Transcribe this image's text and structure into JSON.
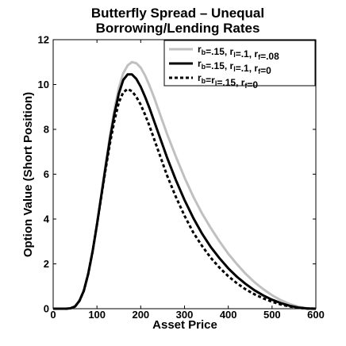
{
  "chart_data": {
    "type": "line",
    "title": [
      "Butterfly Spread – Unequal",
      "Borrowing/Lending Rates"
    ],
    "xlabel": "Asset Price",
    "ylabel": "Option Value (Short Position)",
    "xlim": [
      0,
      600
    ],
    "ylim": [
      0,
      12
    ],
    "xticks": [
      0,
      100,
      200,
      300,
      400,
      500,
      600
    ],
    "yticks": [
      0,
      2,
      4,
      6,
      8,
      10,
      12
    ],
    "grid": false,
    "legend_position": "top-right",
    "series": [
      {
        "name": "r_b=.15, r_l=.1, r_f=.08",
        "legend_parts": [
          [
            "r",
            ""
          ],
          [
            "b",
            "sub"
          ],
          [
            "=.15, r",
            ""
          ],
          [
            "l",
            "sub"
          ],
          [
            "=.1, r",
            ""
          ],
          [
            "f",
            "sub"
          ],
          [
            "=.08",
            ""
          ]
        ],
        "color": "#c0c0c0",
        "dash": "solid",
        "x": [
          0,
          30,
          40,
          50,
          60,
          70,
          80,
          90,
          100,
          110,
          120,
          130,
          140,
          150,
          160,
          170,
          180,
          190,
          200,
          210,
          220,
          230,
          240,
          250,
          260,
          280,
          300,
          320,
          340,
          360,
          380,
          400,
          420,
          440,
          460,
          480,
          500,
          520,
          540,
          560,
          580,
          600
        ],
        "y": [
          0,
          0,
          0.02,
          0.1,
          0.35,
          0.8,
          1.55,
          2.55,
          3.75,
          5.1,
          6.45,
          7.75,
          8.9,
          9.85,
          10.5,
          10.85,
          11.0,
          10.95,
          10.75,
          10.4,
          9.95,
          9.45,
          8.9,
          8.35,
          7.8,
          6.8,
          5.85,
          5.0,
          4.25,
          3.6,
          3.0,
          2.45,
          1.98,
          1.55,
          1.18,
          0.87,
          0.6,
          0.38,
          0.21,
          0.09,
          0.02,
          0
        ]
      },
      {
        "name": "r_b=.15, r_l=.1, r_f=0",
        "legend_parts": [
          [
            "r",
            ""
          ],
          [
            "b",
            "sub"
          ],
          [
            "=.15, r",
            ""
          ],
          [
            "l",
            "sub"
          ],
          [
            "=.1, r",
            ""
          ],
          [
            "f",
            "sub"
          ],
          [
            "=0",
            ""
          ]
        ],
        "color": "#000000",
        "dash": "solid",
        "x": [
          0,
          30,
          40,
          50,
          60,
          70,
          80,
          90,
          100,
          110,
          120,
          130,
          140,
          150,
          160,
          170,
          180,
          190,
          200,
          210,
          220,
          230,
          240,
          250,
          260,
          280,
          300,
          320,
          340,
          360,
          380,
          400,
          420,
          440,
          460,
          480,
          500,
          520,
          540,
          560,
          580,
          600
        ],
        "y": [
          0,
          0,
          0.02,
          0.1,
          0.35,
          0.8,
          1.55,
          2.55,
          3.75,
          5.05,
          6.35,
          7.6,
          8.7,
          9.6,
          10.2,
          10.45,
          10.45,
          10.25,
          9.9,
          9.45,
          8.95,
          8.4,
          7.85,
          7.3,
          6.75,
          5.75,
          4.85,
          4.05,
          3.35,
          2.75,
          2.25,
          1.8,
          1.42,
          1.1,
          0.82,
          0.59,
          0.4,
          0.25,
          0.13,
          0.05,
          0.01,
          0
        ]
      },
      {
        "name": "r_b=r_l=.15, r_f=0",
        "legend_parts": [
          [
            "r",
            ""
          ],
          [
            "b",
            "sub"
          ],
          [
            "=r",
            ""
          ],
          [
            "l",
            "sub"
          ],
          [
            "=.15, r",
            ""
          ],
          [
            "f",
            "sub"
          ],
          [
            "=0",
            ""
          ]
        ],
        "color": "#000000",
        "dash": "dashed",
        "x": [
          0,
          30,
          40,
          50,
          60,
          70,
          80,
          90,
          100,
          110,
          120,
          130,
          140,
          150,
          160,
          170,
          180,
          190,
          200,
          210,
          220,
          230,
          240,
          250,
          260,
          280,
          300,
          320,
          340,
          360,
          380,
          400,
          420,
          440,
          460,
          480,
          500,
          520,
          540,
          560,
          580,
          600
        ],
        "y": [
          0,
          0,
          0.02,
          0.1,
          0.35,
          0.8,
          1.55,
          2.55,
          3.75,
          5.0,
          6.25,
          7.4,
          8.4,
          9.2,
          9.65,
          9.8,
          9.7,
          9.45,
          9.1,
          8.65,
          8.15,
          7.6,
          7.05,
          6.5,
          5.95,
          5.0,
          4.15,
          3.4,
          2.8,
          2.27,
          1.83,
          1.45,
          1.13,
          0.86,
          0.64,
          0.46,
          0.31,
          0.19,
          0.1,
          0.04,
          0.01,
          0
        ]
      }
    ]
  }
}
